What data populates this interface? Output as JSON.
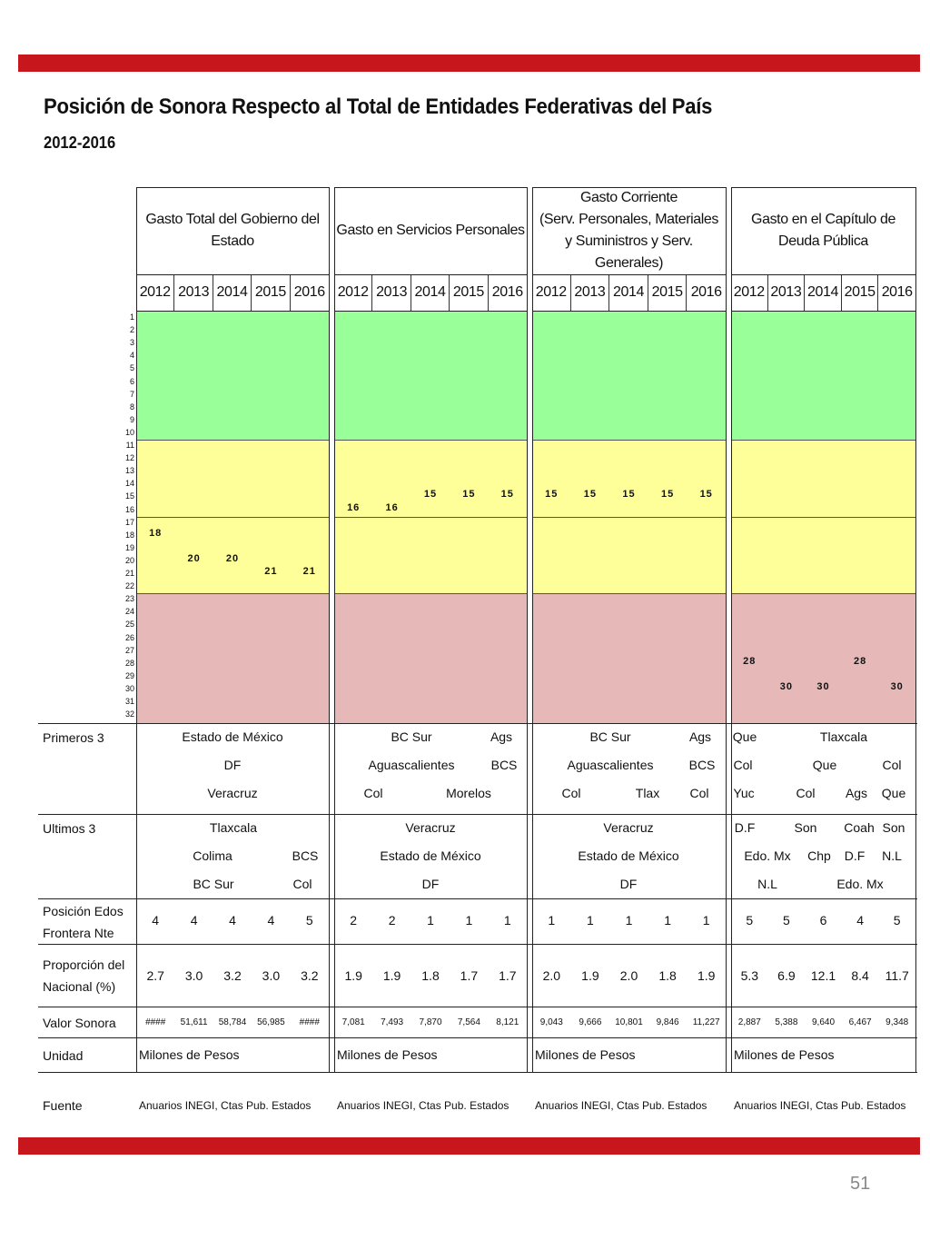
{
  "title": "Posición de Sonora Respecto al Total de Entidades Federativas del País",
  "subtitle": "2012-2016",
  "groups": [
    {
      "header": [
        "Gasto Total del Gobierno del",
        "Estado"
      ]
    },
    {
      "header": [
        "Gasto en Servicios Personales"
      ]
    },
    {
      "header": [
        "Gasto Corriente",
        "(Serv. Personales, Materiales",
        "y Suministros y Serv.",
        "Generales)"
      ]
    },
    {
      "header": [
        "Gasto en el Capítulo de",
        "Deuda Pública"
      ]
    }
  ],
  "years": [
    "2012",
    "2013",
    "2014",
    "2015",
    "2016"
  ],
  "ranks": [
    "1",
    "2",
    "3",
    "4",
    "5",
    "6",
    "7",
    "8",
    "9",
    "10",
    "11",
    "12",
    "13",
    "14",
    "15",
    "16",
    "17",
    "18",
    "19",
    "20",
    "21",
    "22",
    "23",
    "24",
    "25",
    "26",
    "27",
    "28",
    "29",
    "30",
    "31",
    "32"
  ],
  "zone_colors": {
    "green": "#99ff99",
    "yellow": "#ffff99",
    "red": "#e6b8b8"
  },
  "positions": [
    [
      "18",
      "20",
      "20",
      "21",
      "21"
    ],
    [
      "16",
      "16",
      "15",
      "15",
      "15"
    ],
    [
      "15",
      "15",
      "15",
      "15",
      "15"
    ],
    [
      "28",
      "30",
      "30",
      "28",
      "30"
    ]
  ],
  "labels": {
    "primeros": "Primeros 3",
    "ultimos": "Ultimos 3",
    "frontera": [
      "Posición Edos",
      "Frontera Nte"
    ],
    "proporcion": [
      "Proporción del",
      "Nacional (%)"
    ],
    "valor": "Valor Sonora",
    "unidad": "Unidad",
    "fuente": "Fuente"
  },
  "primeros": [
    [
      "Estado de México",
      "DF",
      "Veracruz"
    ],
    [
      "BC Sur",
      "Ags",
      "Aguascalientes",
      "BCS",
      "Col",
      "Morelos"
    ],
    [
      "BC Sur",
      "Ags",
      "Aguascalientes",
      "BCS",
      "Col",
      "Tlax",
      "Col"
    ],
    [
      "Que",
      "Tlaxcala",
      "Col",
      "Que",
      "Col",
      "Yuc",
      "Col",
      "Ags",
      "Que"
    ]
  ],
  "ultimos": [
    [
      "Tlaxcala",
      "Colima",
      "BCS",
      "BC Sur",
      "Col"
    ],
    [
      "Veracruz",
      "Estado de México",
      "DF"
    ],
    [
      "Veracruz",
      "Estado de México",
      "DF"
    ],
    [
      "D.F",
      "Son",
      "Coah",
      "Son",
      "Edo. Mx",
      "Chp",
      "D.F",
      "N.L",
      "N.L",
      "Edo. Mx"
    ]
  ],
  "frontera": [
    [
      "4",
      "4",
      "4",
      "4",
      "5"
    ],
    [
      "2",
      "2",
      "1",
      "1",
      "1"
    ],
    [
      "1",
      "1",
      "1",
      "1",
      "1"
    ],
    [
      "5",
      "5",
      "6",
      "4",
      "5"
    ]
  ],
  "proporcion": [
    [
      "2.7",
      "3.0",
      "3.2",
      "3.0",
      "3.2"
    ],
    [
      "1.9",
      "1.9",
      "1.8",
      "1.7",
      "1.7"
    ],
    [
      "2.0",
      "1.9",
      "2.0",
      "1.8",
      "1.9"
    ],
    [
      "5.3",
      "6.9",
      "12.1",
      "8.4",
      "11.7"
    ]
  ],
  "valor": [
    [
      "####",
      "51,611",
      "58,784",
      "56,985",
      "####"
    ],
    [
      "7,081",
      "7,493",
      "7,870",
      "7,564",
      "8,121"
    ],
    [
      "9,043",
      "9,666",
      "10,801",
      "9,846",
      "11,227"
    ],
    [
      "2,887",
      "5,388",
      "9,640",
      "6,467",
      "9,348"
    ]
  ],
  "unidad": [
    "Milones de Pesos",
    "Milones de Pesos",
    "Milones de Pesos",
    "Milones de Pesos"
  ],
  "fuente": [
    "Anuarios INEGI, Ctas Pub. Estados",
    "Anuarios INEGI, Ctas Pub. Estados",
    "Anuarios INEGI, Ctas Pub. Estados",
    "Anuarios INEGI, Ctas Pub. Estados"
  ],
  "page_number": "51",
  "accent_color": "#c8161d"
}
